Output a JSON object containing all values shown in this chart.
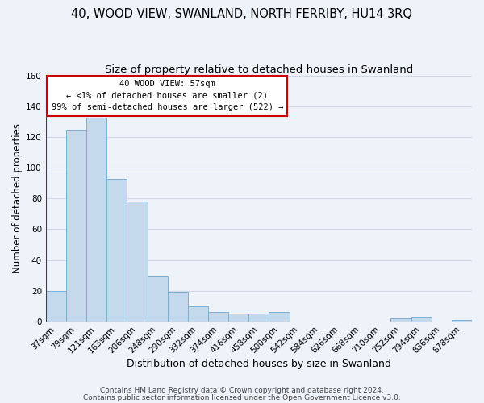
{
  "title": "40, WOOD VIEW, SWANLAND, NORTH FERRIBY, HU14 3RQ",
  "subtitle": "Size of property relative to detached houses in Swanland",
  "xlabel": "Distribution of detached houses by size in Swanland",
  "ylabel": "Number of detached properties",
  "bar_color": "#c5d9ed",
  "bar_edge_color": "#7aafd4",
  "categories": [
    "37sqm",
    "79sqm",
    "121sqm",
    "163sqm",
    "206sqm",
    "248sqm",
    "290sqm",
    "332sqm",
    "374sqm",
    "416sqm",
    "458sqm",
    "500sqm",
    "542sqm",
    "584sqm",
    "626sqm",
    "668sqm",
    "710sqm",
    "752sqm",
    "794sqm",
    "836sqm",
    "878sqm"
  ],
  "values": [
    20,
    125,
    133,
    93,
    78,
    29,
    19,
    10,
    6,
    5,
    5,
    6,
    0,
    0,
    0,
    0,
    0,
    2,
    3,
    0,
    1
  ],
  "ylim": [
    0,
    160
  ],
  "yticks": [
    0,
    20,
    40,
    60,
    80,
    100,
    120,
    140,
    160
  ],
  "annotation_box_text": "40 WOOD VIEW: 57sqm\n← <1% of detached houses are smaller (2)\n99% of semi-detached houses are larger (522) →",
  "annotation_box_edge_color": "#cc0000",
  "annotation_box_face_color": "white",
  "highlight_bar_index": 0,
  "highlight_bar_edge_color": "#cc0000",
  "footer_line1": "Contains HM Land Registry data © Crown copyright and database right 2024.",
  "footer_line2": "Contains public sector information licensed under the Open Government Licence v3.0.",
  "background_color": "#eef2f9",
  "grid_color": "#d0d8e8",
  "title_fontsize": 10.5,
  "subtitle_fontsize": 9.5,
  "xlabel_fontsize": 9,
  "ylabel_fontsize": 8.5,
  "tick_fontsize": 7.5,
  "footer_fontsize": 6.5
}
